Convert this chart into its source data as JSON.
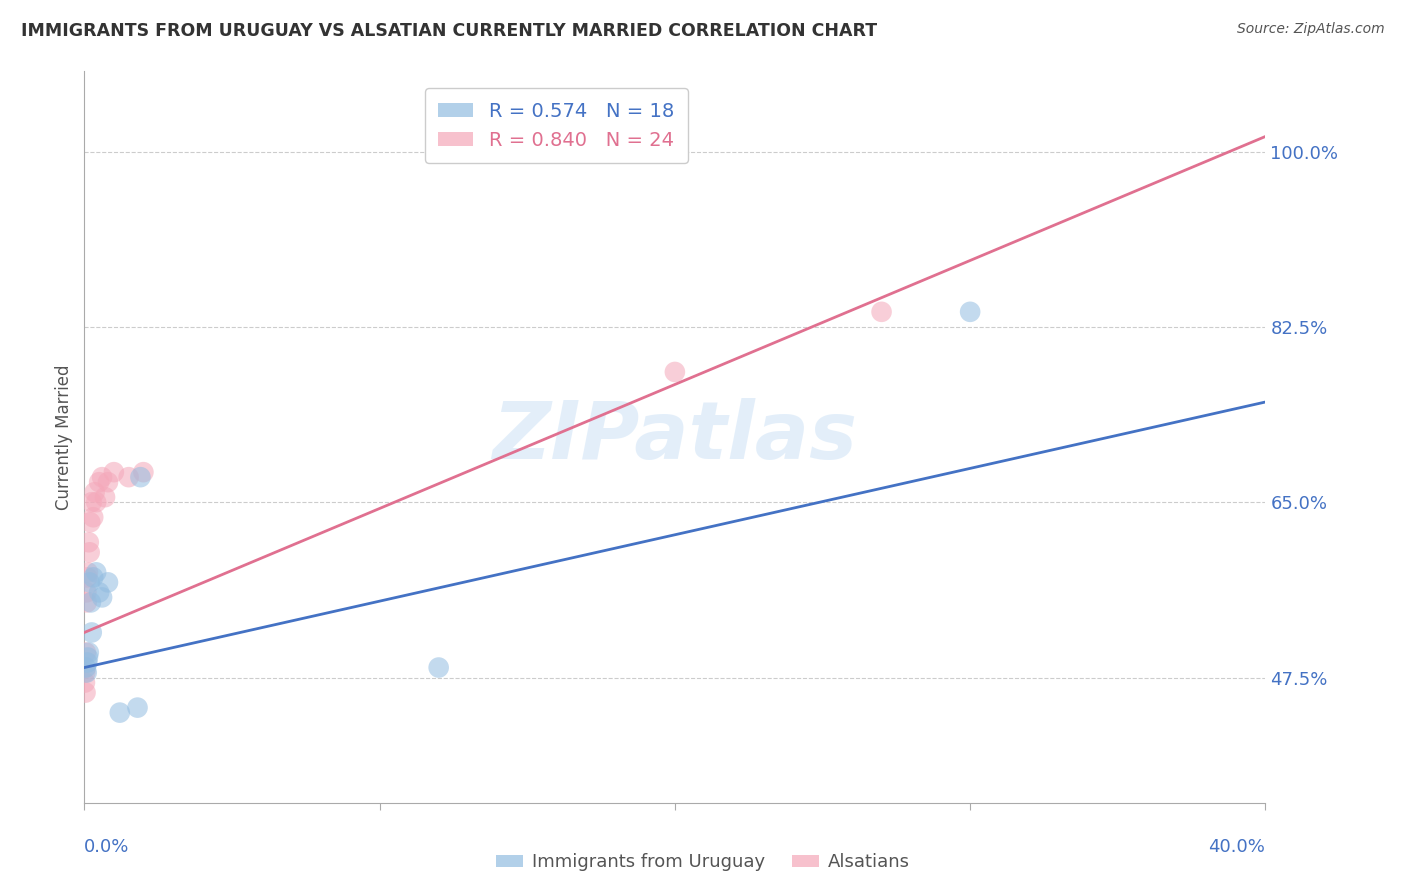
{
  "title": "IMMIGRANTS FROM URUGUAY VS ALSATIAN CURRENTLY MARRIED CORRELATION CHART",
  "source": "Source: ZipAtlas.com",
  "ylabel": "Currently Married",
  "watermark": "ZIPatlas",
  "blue_label": "Immigrants from Uruguay",
  "pink_label": "Alsatians",
  "blue_R": "0.574",
  "blue_N": "18",
  "pink_R": "0.840",
  "pink_N": "24",
  "blue_color": "#92bce0",
  "pink_color": "#f4a7b9",
  "blue_line_color": "#4472c4",
  "pink_line_color": "#e07090",
  "tick_label_color": "#4472c4",
  "xlim": [
    0.0,
    40.0
  ],
  "ylim": [
    35.0,
    108.0
  ],
  "yticks": [
    47.5,
    65.0,
    82.5,
    100.0
  ],
  "xticks": [
    0.0,
    10.0,
    20.0,
    30.0,
    40.0
  ],
  "blue_points": [
    [
      0.05,
      48.5
    ],
    [
      0.08,
      48.0
    ],
    [
      0.1,
      49.0
    ],
    [
      0.12,
      49.5
    ],
    [
      0.15,
      50.0
    ],
    [
      0.18,
      57.0
    ],
    [
      0.22,
      55.0
    ],
    [
      0.25,
      52.0
    ],
    [
      0.3,
      57.5
    ],
    [
      0.4,
      58.0
    ],
    [
      0.5,
      56.0
    ],
    [
      0.6,
      55.5
    ],
    [
      0.8,
      57.0
    ],
    [
      1.2,
      44.0
    ],
    [
      1.8,
      44.5
    ],
    [
      1.9,
      67.5
    ],
    [
      12.0,
      48.5
    ],
    [
      30.0,
      84.0
    ]
  ],
  "pink_points": [
    [
      0.03,
      48.0
    ],
    [
      0.05,
      50.0
    ],
    [
      0.07,
      56.0
    ],
    [
      0.08,
      55.0
    ],
    [
      0.1,
      57.5
    ],
    [
      0.12,
      58.0
    ],
    [
      0.15,
      61.0
    ],
    [
      0.18,
      60.0
    ],
    [
      0.2,
      63.0
    ],
    [
      0.25,
      65.0
    ],
    [
      0.3,
      63.5
    ],
    [
      0.35,
      66.0
    ],
    [
      0.4,
      65.0
    ],
    [
      0.5,
      67.0
    ],
    [
      0.6,
      67.5
    ],
    [
      0.7,
      65.5
    ],
    [
      0.8,
      67.0
    ],
    [
      1.0,
      68.0
    ],
    [
      1.5,
      67.5
    ],
    [
      2.0,
      68.0
    ],
    [
      0.02,
      47.0
    ],
    [
      0.04,
      46.0
    ],
    [
      20.0,
      78.0
    ],
    [
      27.0,
      84.0
    ]
  ],
  "blue_trendline_x": [
    0.0,
    40.0
  ],
  "blue_trendline_y": [
    48.5,
    75.0
  ],
  "pink_trendline_x": [
    0.0,
    40.0
  ],
  "pink_trendline_y": [
    52.0,
    101.5
  ]
}
